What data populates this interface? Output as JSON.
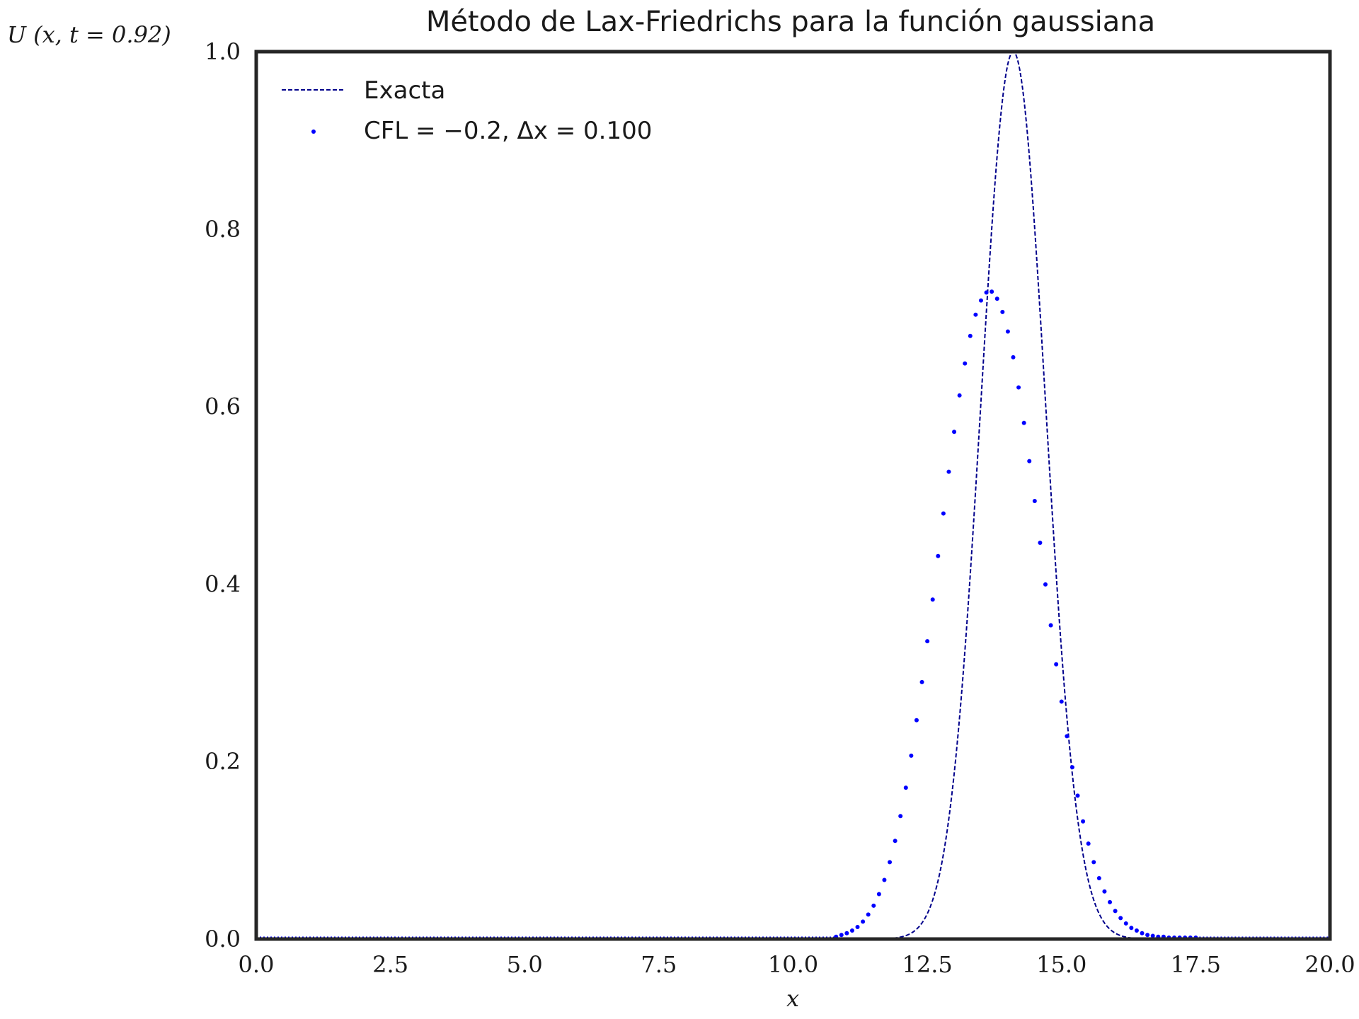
{
  "chart_data": {
    "type": "line",
    "title": "Método de Lax-Friedrichs para la función gaussiana",
    "xlabel": "x",
    "ylabel": "U (x, t = 0.92)",
    "xlim": [
      0.0,
      20.0
    ],
    "ylim": [
      0.0,
      1.0
    ],
    "xticks": [
      "0.0",
      "2.5",
      "5.0",
      "7.5",
      "10.0",
      "12.5",
      "15.0",
      "17.5",
      "20.0"
    ],
    "yticks": [
      "0.0",
      "0.2",
      "0.4",
      "0.6",
      "0.8",
      "1.0"
    ],
    "grid": false,
    "legend_position": "top-left",
    "series": [
      {
        "name": "Exacta",
        "style": "dashed-line",
        "color": "#00008b",
        "function": "gaussian",
        "center": 14.1,
        "peak": 1.0,
        "sigma": 0.6
      },
      {
        "name": "CFL = −0.2, Δx = 0.100",
        "style": "dots",
        "color": "#0000ff",
        "x": [
          10.8,
          10.9,
          11.0,
          11.1,
          11.2,
          11.3,
          11.4,
          11.5,
          11.6,
          11.7,
          11.8,
          11.9,
          12.0,
          12.1,
          12.2,
          12.3,
          12.4,
          12.5,
          12.6,
          12.7,
          12.8,
          12.9,
          13.0,
          13.1,
          13.2,
          13.3,
          13.4,
          13.5,
          13.6,
          13.7,
          13.8,
          13.9,
          14.0,
          14.1,
          14.2,
          14.3,
          14.4,
          14.5,
          14.6,
          14.7,
          14.8,
          14.9,
          15.0,
          15.1,
          15.2,
          15.3,
          15.4,
          15.5,
          15.6,
          15.7,
          15.8,
          15.9,
          16.0,
          16.1,
          16.2,
          16.3,
          16.4,
          16.5,
          16.6,
          16.7,
          16.8,
          16.9,
          17.0,
          17.1,
          17.2,
          17.3,
          17.4,
          17.5
        ],
        "y": [
          0.001,
          0.003,
          0.005,
          0.008,
          0.012,
          0.018,
          0.026,
          0.036,
          0.049,
          0.065,
          0.085,
          0.109,
          0.137,
          0.169,
          0.205,
          0.245,
          0.288,
          0.334,
          0.381,
          0.43,
          0.478,
          0.525,
          0.57,
          0.611,
          0.647,
          0.678,
          0.702,
          0.718,
          0.727,
          0.728,
          0.72,
          0.705,
          0.683,
          0.654,
          0.62,
          0.58,
          0.537,
          0.492,
          0.445,
          0.398,
          0.352,
          0.308,
          0.266,
          0.227,
          0.192,
          0.16,
          0.131,
          0.106,
          0.085,
          0.067,
          0.052,
          0.04,
          0.03,
          0.022,
          0.016,
          0.011,
          0.008,
          0.005,
          0.003,
          0.002,
          0.001,
          0.001,
          0.0,
          0.0,
          0.0,
          0.0,
          0.0,
          0.0
        ]
      }
    ]
  }
}
